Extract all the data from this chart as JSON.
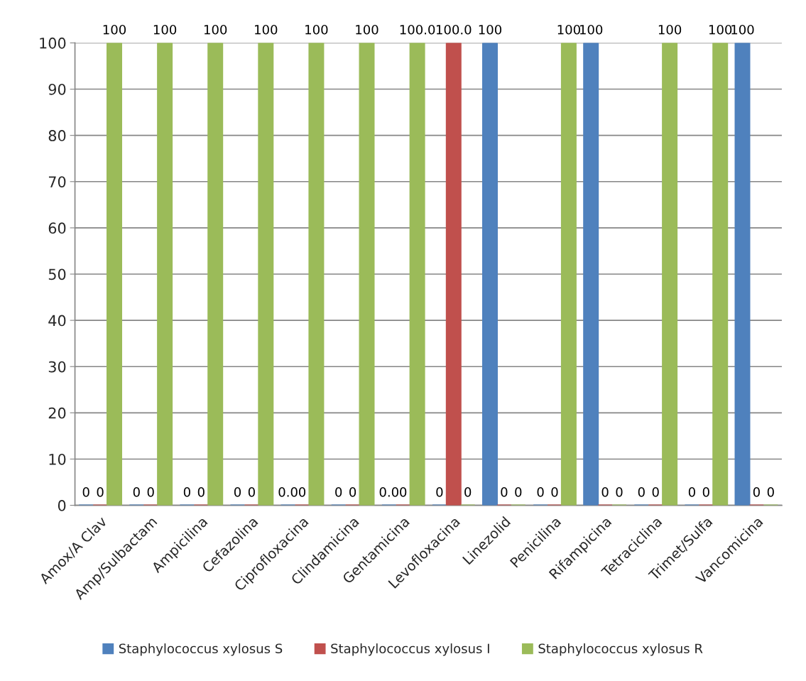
{
  "chart_data": {
    "type": "bar",
    "categories": [
      "Amox/A Clav",
      "Amp/Sulbactam",
      "Ampicilina",
      "Cefazolina",
      "Ciprofloxacina",
      "Clindamicina",
      "Gentamicina",
      "Levofloxacina",
      "Linezolid",
      "Penicilina",
      "Rifampicina",
      "Tetraciclina",
      "Trimet/Sulfa",
      "Vancomicina"
    ],
    "series": [
      {
        "name": "Staphylococcus xylosus S",
        "color": "#4f81bd",
        "values": [
          0,
          0,
          0,
          0,
          0,
          0,
          0,
          0,
          100,
          0,
          100,
          0,
          0,
          100
        ],
        "value_labels": [
          "0",
          "0",
          "0",
          "0",
          "0.0",
          "0",
          "0.0",
          "0",
          "100",
          "0",
          "100",
          "0",
          "0",
          "100"
        ]
      },
      {
        "name": "Staphylococcus xylosus I",
        "color": "#c0504d",
        "values": [
          0,
          0,
          0,
          0,
          0,
          0,
          0,
          100,
          0,
          0,
          0,
          0,
          0,
          0
        ],
        "value_labels": [
          "0",
          "0",
          "0",
          "0",
          "0",
          "0",
          "0",
          "100.0",
          "0",
          "0",
          "0",
          "0",
          "0",
          "0"
        ]
      },
      {
        "name": "Staphylococcus xylosus R",
        "color": "#9bbb59",
        "values": [
          100,
          100,
          100,
          100,
          100,
          100,
          100,
          0,
          0,
          100,
          0,
          100,
          100,
          0
        ],
        "value_labels": [
          "100",
          "100",
          "100",
          "100",
          "100",
          "100",
          "100.0",
          "0",
          "0",
          "100",
          "0",
          "100",
          "100",
          "0"
        ]
      }
    ],
    "ylim": [
      0,
      100
    ],
    "yticks": [
      0,
      10,
      20,
      30,
      40,
      50,
      60,
      70,
      80,
      90,
      100
    ],
    "grid": "y",
    "legend": "bottom"
  }
}
